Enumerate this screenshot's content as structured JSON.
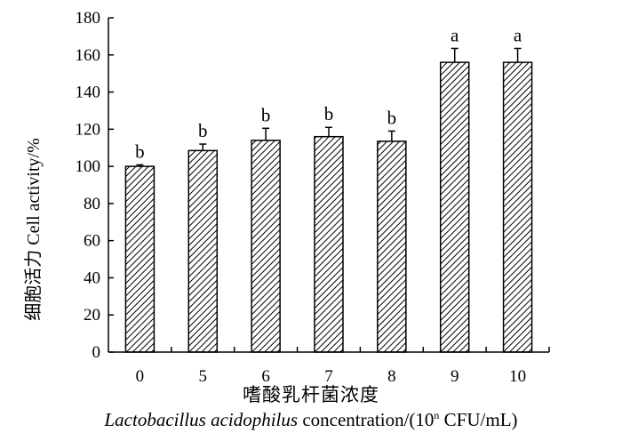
{
  "chart_data": {
    "type": "bar",
    "categories": [
      "0",
      "5",
      "6",
      "7",
      "8",
      "9",
      "10"
    ],
    "values": [
      100,
      108.5,
      114,
      116,
      113.5,
      156,
      156
    ],
    "errors": [
      0.8,
      3.5,
      6.5,
      5,
      5.5,
      7.5,
      7.5
    ],
    "significance": [
      "b",
      "b",
      "b",
      "b",
      "b",
      "a",
      "a"
    ],
    "ylim": [
      0,
      180
    ],
    "yticks": [
      0,
      20,
      40,
      60,
      80,
      100,
      120,
      140,
      160,
      180
    ],
    "bar_pattern": "diagonal-hatch",
    "ylabel": "细胞活力  Cell activity/%",
    "xlabel_cn": "嗜酸乳杆菌浓度",
    "xlabel_en": {
      "italic": "Lactobacillus acidophilus",
      "normal": " concentration/(10",
      "superscript": "n",
      "suffix": " CFU/mL)"
    }
  }
}
